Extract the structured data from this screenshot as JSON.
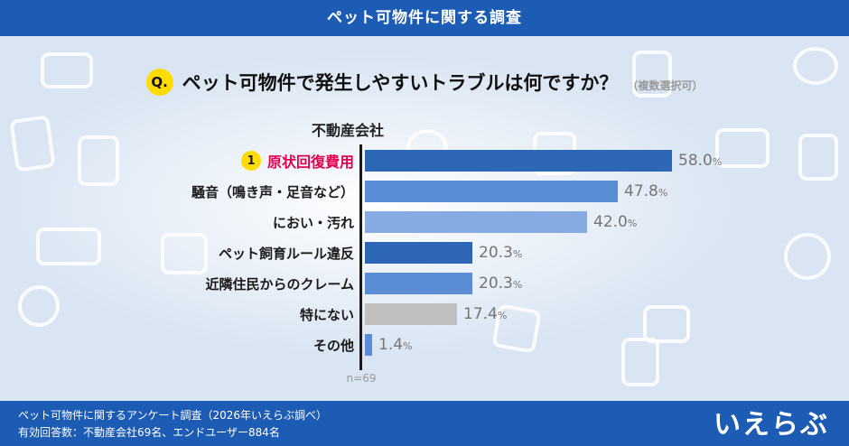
{
  "header": {
    "title": "ペット可物件に関する調査"
  },
  "question": {
    "badge": "Q.",
    "text": "ペット可物件で発生しやすいトラブルは何ですか？",
    "note": "（複数選択可）"
  },
  "chart_data": {
    "type": "bar",
    "orientation": "horizontal",
    "title": "不動産会社",
    "categories": [
      "原状回復費用",
      "騒音（鳴き声・足音など）",
      "におい・汚れ",
      "ペット飼育ルール違反",
      "近隣住民からのクレーム",
      "特にない",
      "その他"
    ],
    "values": [
      58.0,
      47.8,
      42.0,
      20.3,
      20.3,
      17.4,
      1.4
    ],
    "value_labels": [
      "58.0",
      "47.8",
      "42.0",
      "20.3",
      "20.3",
      "17.4",
      "1.4"
    ],
    "unit": "%",
    "sample_label": "n=69",
    "rank1_badge": "1",
    "bar_colors": [
      "#2c66b5",
      "#5b8dd6",
      "#86abe2",
      "#2c66b5",
      "#5b8dd6",
      "#bfbfbf",
      "#5b8dd6"
    ],
    "xlim": [
      0,
      60
    ],
    "grid": false,
    "legend_position": "none"
  },
  "footer": {
    "line1": "ペット可物件に関するアンケート調査（2026年いえらぶ調べ）",
    "line2": "有効回答数：不動産会社69名、エンドユーザー884名",
    "logo_text": "いえらぶ"
  },
  "colors": {
    "theme_blue": "#1d5cb4",
    "background": "#d9e5f3",
    "accent_yellow": "#ffdc00",
    "rank1_red": "#e5004e",
    "value_gray": "#757575"
  }
}
